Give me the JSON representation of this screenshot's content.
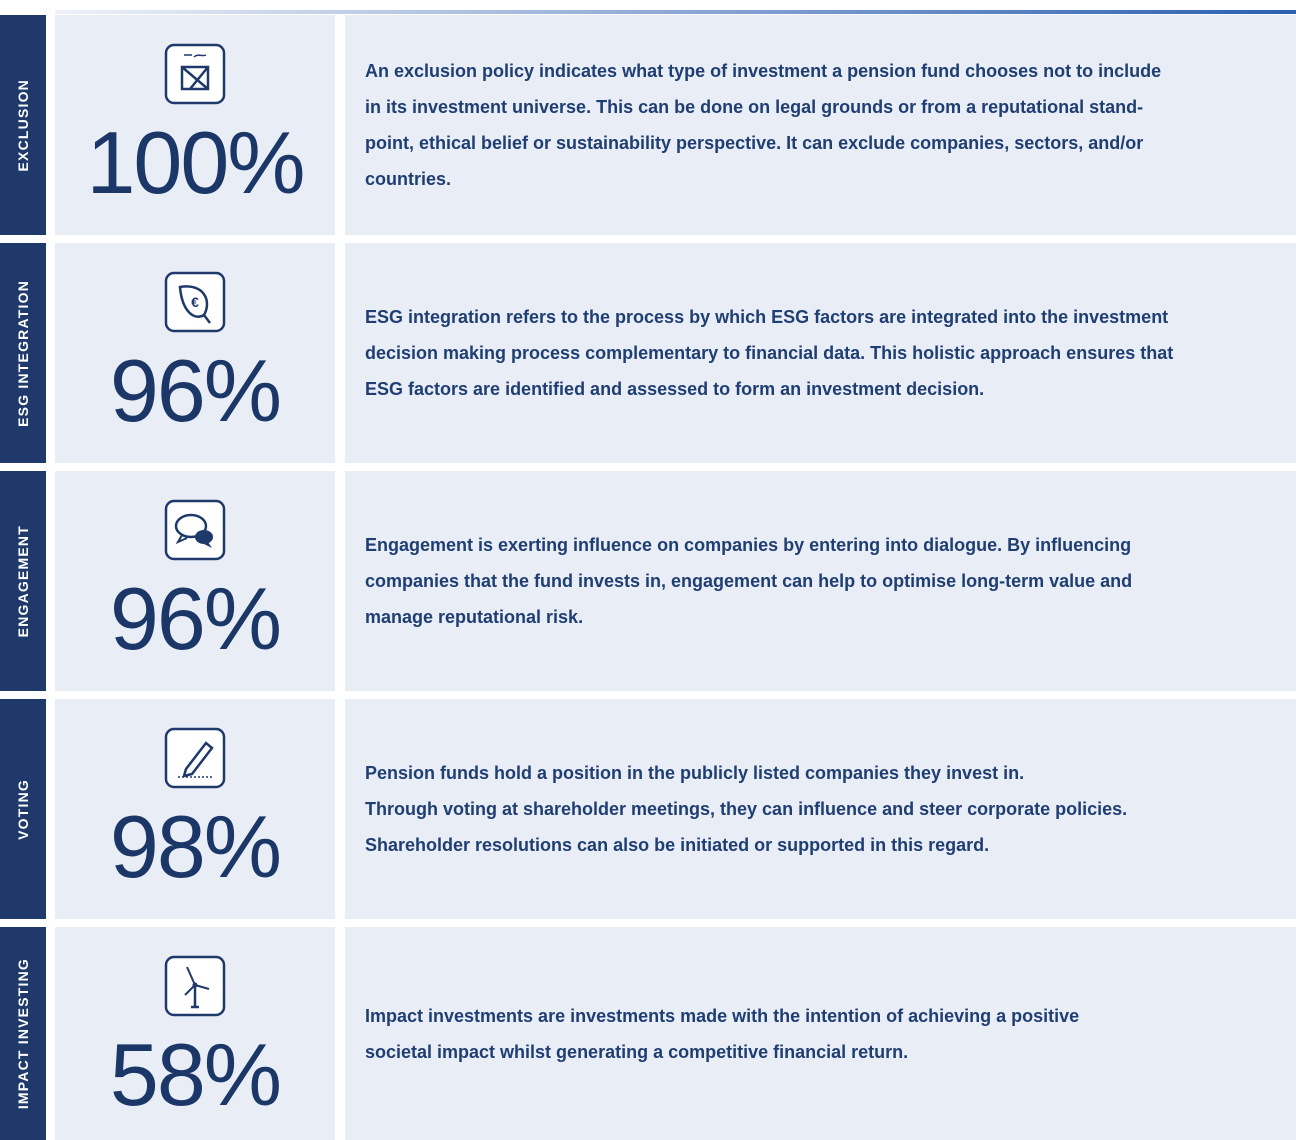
{
  "items": [
    {
      "label": "EXCLUSION",
      "percent": "100%",
      "lines": [
        "An exclusion policy indicates what type of investment a pension fund chooses not to include",
        "in its investment universe. This can be done on legal grounds or from a reputational stand-",
        "point, ethical belief or sustainability perspective. It can exclude companies, sectors, and/or",
        "countries."
      ]
    },
    {
      "label": "ESG INTEGRATION",
      "percent": "96%",
      "lines": [
        "ESG integration refers to the process by which ESG factors are integrated into the investment",
        "decision making process complementary to financial data. This holistic approach ensures that",
        "ESG factors are identified and assessed to form an investment decision."
      ]
    },
    {
      "label": "ENGAGEMENT",
      "percent": "96%",
      "lines": [
        "Engagement is exerting influence on companies by entering into dialogue. By influencing",
        "companies that the fund invests in, engagement can help to optimise long-term value and",
        "manage reputational risk."
      ]
    },
    {
      "label": "VOTING",
      "percent": "98%",
      "lines": [
        "Pension funds hold a position in the publicly listed companies they invest in.",
        "Through voting at shareholder meetings, they can influence and steer corporate policies.",
        "Shareholder resolutions can also be initiated or supported in this regard."
      ]
    },
    {
      "label": "IMPACT INVESTING",
      "percent": "58%",
      "lines": [
        "Impact investments are investments made with the intention of achieving a positive",
        "societal impact whilst generating a competitive financial return."
      ]
    }
  ]
}
